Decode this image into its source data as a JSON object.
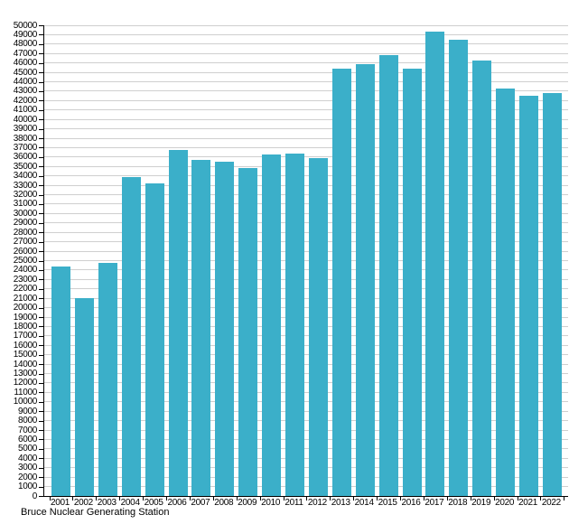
{
  "chart_data": {
    "type": "bar",
    "title": "Bruce Nuclear Generating Station",
    "categories": [
      "2001",
      "2002",
      "2003",
      "2004",
      "2005",
      "2006",
      "2007",
      "2008",
      "2009",
      "2010",
      "2011",
      "2012",
      "2013",
      "2014",
      "2015",
      "2016",
      "2017",
      "2018",
      "2019",
      "2020",
      "2021",
      "2022"
    ],
    "values": [
      24400,
      21000,
      24800,
      33900,
      33200,
      36800,
      35700,
      35500,
      34800,
      36300,
      36400,
      35900,
      45400,
      45900,
      46800,
      45400,
      49300,
      48500,
      46300,
      43300,
      42500,
      42800
    ],
    "xlabel": "",
    "ylabel": "",
    "ylim": [
      0,
      50000
    ],
    "ytick_step": 1000,
    "grid": "on",
    "legend": "none",
    "bar_color": "#3bafc9",
    "gridline_color": "#cfcfcf",
    "axis_color": "#000000",
    "title_position": "bottom-left"
  }
}
